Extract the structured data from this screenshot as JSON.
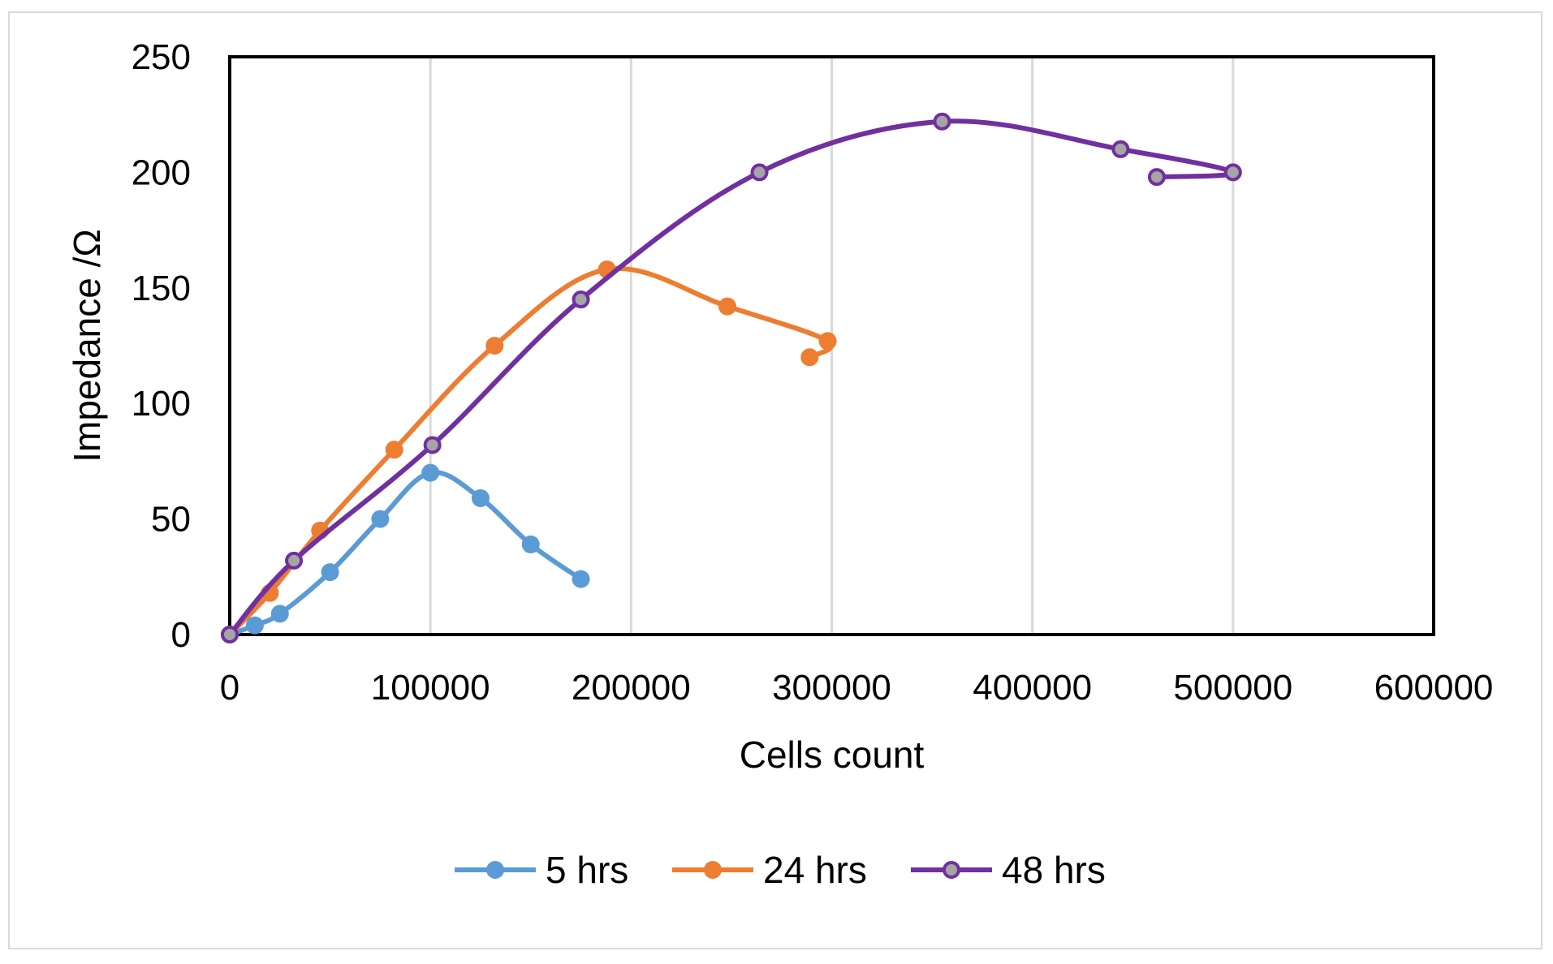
{
  "chart_data": {
    "type": "scatter",
    "title": "",
    "xlabel": "Cells count",
    "ylabel": "Impedance /Ω",
    "xlim": [
      0,
      600000
    ],
    "ylim": [
      0,
      250
    ],
    "xticks": [
      0,
      100000,
      200000,
      300000,
      400000,
      500000,
      600000
    ],
    "xtick_labels": [
      "0",
      "100000",
      "200000",
      "300000",
      "400000",
      "500000",
      "600000"
    ],
    "yticks": [
      0,
      50,
      100,
      150,
      200,
      250
    ],
    "ytick_labels": [
      "0",
      "50",
      "100",
      "150",
      "200",
      "250"
    ],
    "grid": "vertical",
    "smooth_lines": true,
    "legend_position": "bottom",
    "series": [
      {
        "name": "5 hrs",
        "color": "#5b9bd5",
        "marker_fill": "#5b9bd5",
        "x": [
          0,
          12500,
          25000,
          50000,
          75000,
          100000,
          125000,
          150000,
          175000
        ],
        "y": [
          0,
          4,
          9,
          27,
          50,
          70,
          59,
          39,
          24
        ]
      },
      {
        "name": "24 hrs",
        "color": "#ed7d31",
        "marker_fill": "#ed7d31",
        "x": [
          0,
          20000,
          45000,
          82000,
          132000,
          188000,
          248000,
          298000,
          289000
        ],
        "y": [
          0,
          18,
          45,
          80,
          125,
          158,
          142,
          127,
          120
        ]
      },
      {
        "name": "48 hrs",
        "color": "#7030a0",
        "marker_fill": "#a5a5a5",
        "x": [
          0,
          32000,
          101000,
          175000,
          264000,
          355000,
          444000,
          500000,
          462000
        ],
        "y": [
          0,
          32,
          82,
          145,
          200,
          222,
          210,
          200,
          198
        ]
      }
    ]
  }
}
